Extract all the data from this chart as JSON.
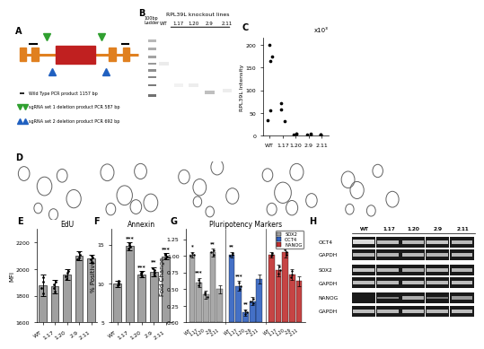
{
  "panel_C": {
    "categories": [
      "WT",
      "1.17",
      "1.20",
      "2.9",
      "2.11"
    ],
    "points": {
      "WT": [
        200,
        175,
        165,
        55,
        35
      ],
      "1.17": [
        72,
        58,
        32
      ],
      "1.20": [
        5,
        4,
        3
      ],
      "2.9": [
        4,
        3,
        3
      ],
      "2.11": [
        3,
        3,
        2
      ]
    },
    "ylabel": "RPL39L Intensity",
    "ylim": [
      0,
      210
    ],
    "yticks": [
      0,
      50,
      100,
      150,
      200
    ]
  },
  "panel_E": {
    "categories": [
      "WT",
      "1.17",
      "1.20",
      "2.9",
      "2.11"
    ],
    "means": [
      1880,
      1870,
      1960,
      2100,
      2080
    ],
    "errors": [
      80,
      50,
      40,
      35,
      30
    ],
    "ylabel": "MFI",
    "title": "EdU",
    "ylim": [
      1600,
      2300
    ],
    "yticks": [
      1600,
      1800,
      2000,
      2200
    ],
    "bar_color": "#a0a0a0"
  },
  "panel_F": {
    "categories": [
      "WT",
      "1.17",
      "1.20",
      "2.9",
      "2.11"
    ],
    "means": [
      10.0,
      14.8,
      11.2,
      11.5,
      13.5
    ],
    "errors": [
      0.4,
      0.5,
      0.4,
      0.6,
      0.4
    ],
    "ylabel": "% Positive",
    "title": "Annexin",
    "ylim": [
      5,
      17
    ],
    "yticks": [
      5,
      10,
      15
    ],
    "bar_color": "#a0a0a0",
    "sig": [
      "***",
      "***",
      "**",
      "***"
    ]
  },
  "panel_G": {
    "gene_groups": [
      "SOX2",
      "OCT4",
      "NANOG"
    ],
    "categories": [
      "WT",
      "1.17",
      "1.20",
      "2.9",
      "2.11"
    ],
    "means": {
      "SOX2": [
        1.02,
        0.6,
        0.42,
        1.05,
        0.5
      ],
      "OCT4": [
        1.02,
        0.55,
        0.15,
        0.32,
        0.65
      ],
      "NANOG": [
        1.02,
        0.78,
        1.05,
        0.72,
        0.62
      ]
    },
    "errors": {
      "SOX2": [
        0.04,
        0.07,
        0.06,
        0.06,
        0.06
      ],
      "OCT4": [
        0.04,
        0.07,
        0.05,
        0.06,
        0.07
      ],
      "NANOG": [
        0.04,
        0.09,
        0.07,
        0.08,
        0.07
      ]
    },
    "colors": {
      "SOX2": "#a0a0a0",
      "OCT4": "#3060c0",
      "NANOG": "#c03030"
    },
    "ylabel": "Fold Change",
    "title": "Pluripotency Markers",
    "ylim": [
      0.0,
      1.35
    ],
    "yticks": [
      0.0,
      0.25,
      0.5,
      0.75,
      1.0,
      1.25
    ],
    "sig": {
      "SOX2": [
        "*",
        "***",
        "",
        "**"
      ],
      "OCT4": [
        "**",
        "***",
        "**",
        ""
      ],
      "NANOG": [
        "",
        "",
        "",
        ""
      ]
    }
  },
  "schema_colors": {
    "line": "#e08020",
    "cds": "#c02020",
    "exon": "#e08020",
    "primer": "#000000",
    "sgrna1": "#30a030",
    "sgrna2": "#2060c0"
  },
  "western_bands": {
    "labels": [
      "OCT4",
      "GAPDH",
      "SOX2",
      "GAPDH",
      "NANOG",
      "GAPDH"
    ],
    "intensities": {
      "OCT4": [
        0.95,
        0.82,
        0.8,
        0.85,
        0.8
      ],
      "GAPDH": [
        0.8,
        0.78,
        0.8,
        0.78,
        0.8
      ],
      "SOX2": [
        0.85,
        0.8,
        0.75,
        0.8,
        0.78
      ],
      "GAPDH2": [
        0.82,
        0.8,
        0.82,
        0.8,
        0.82
      ],
      "NANOG": [
        0.15,
        0.55,
        0.75,
        0.5,
        0.65
      ],
      "GAPDH3": [
        0.82,
        0.8,
        0.82,
        0.8,
        0.82
      ]
    }
  }
}
